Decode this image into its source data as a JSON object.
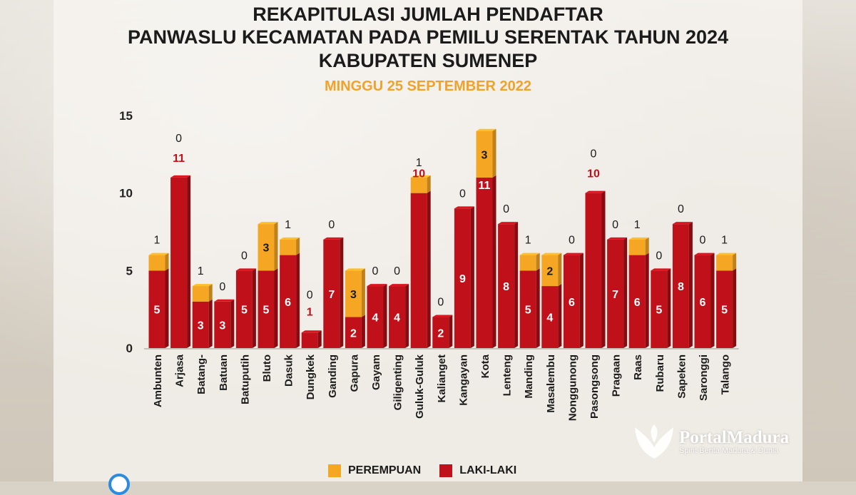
{
  "title_lines": [
    "REKAPITULASI JUMLAH PENDAFTAR",
    "PANWASLU KECAMATAN PADA PEMILU SERENTAK TAHUN 2024",
    "KABUPATEN SUMENEP"
  ],
  "subtitle": "MINGGU 25 SEPTEMBER 2022",
  "colors": {
    "perempuan": "#f5a623",
    "laki_laki": "#c0111a",
    "subtitle": "#f0a22a"
  },
  "logo": {
    "name": "PortalMadura",
    "tagline": "Spirit Berita Madura & Dunia",
    "icon": "bird-logo-icon"
  },
  "chart_data": {
    "type": "bar",
    "stacked": true,
    "ylim": [
      0,
      15
    ],
    "yticks": [
      0,
      5,
      10,
      15
    ],
    "legend_position": "bottom-center",
    "grid": false,
    "categories": [
      "Ambunten",
      "Arjasa",
      "Batang-",
      "Batuan",
      "Batuputih",
      "Bluto",
      "Dasuk",
      "Dungkek",
      "Ganding",
      "Gapura",
      "Gayam",
      "Giligenting",
      "Guluk-Guluk",
      "Kalianget",
      "Kangayan",
      "Kota",
      "Lenteng",
      "Manding",
      "Masalembu",
      "Nonggunong",
      "Pasongsong",
      "Pragaan",
      "Raas",
      "Rubaru",
      "Sapeken",
      "Saronggi",
      "Talango"
    ],
    "series": [
      {
        "name": "LAKI-LAKI",
        "values": [
          5,
          11,
          3,
          3,
          5,
          5,
          6,
          1,
          7,
          2,
          4,
          4,
          10,
          2,
          9,
          11,
          8,
          5,
          4,
          6,
          10,
          7,
          6,
          5,
          8,
          6,
          5
        ]
      },
      {
        "name": "PEREMPUAN",
        "values": [
          1,
          0,
          1,
          0,
          0,
          3,
          1,
          0,
          0,
          3,
          0,
          0,
          1,
          0,
          0,
          3,
          0,
          1,
          2,
          0,
          0,
          0,
          1,
          0,
          0,
          0,
          1
        ]
      }
    ]
  }
}
